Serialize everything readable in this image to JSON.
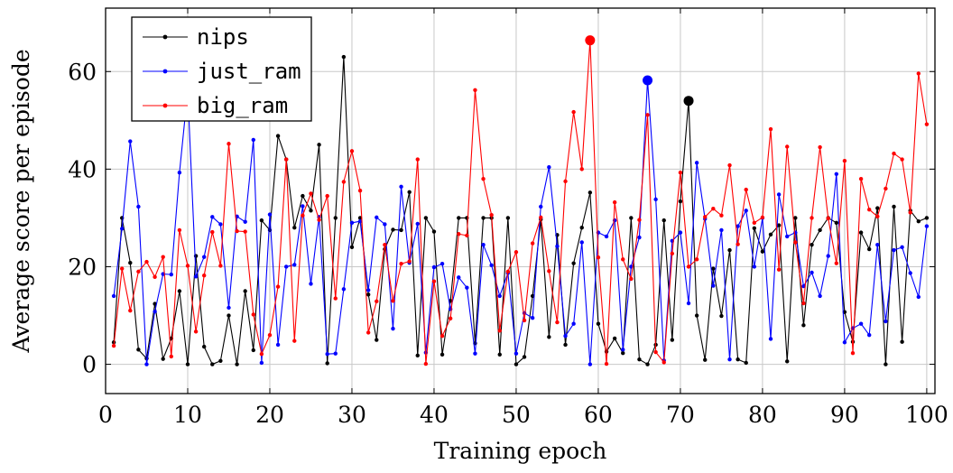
{
  "chart_data": {
    "type": "line",
    "title": "",
    "xlabel": "Training epoch",
    "ylabel": "Average score per episode",
    "xlim": [
      0,
      101
    ],
    "ylim": [
      -6,
      73
    ],
    "xticks": [
      0,
      10,
      20,
      30,
      40,
      50,
      60,
      70,
      80,
      90,
      100
    ],
    "yticks": [
      0,
      20,
      40,
      60
    ],
    "grid": true,
    "legend": "top-left",
    "x": [
      1,
      2,
      3,
      4,
      5,
      6,
      7,
      8,
      9,
      10,
      11,
      12,
      13,
      14,
      15,
      16,
      17,
      18,
      19,
      20,
      21,
      22,
      23,
      24,
      25,
      26,
      27,
      28,
      29,
      30,
      31,
      32,
      33,
      34,
      35,
      36,
      37,
      38,
      39,
      40,
      41,
      42,
      43,
      44,
      45,
      46,
      47,
      48,
      49,
      50,
      51,
      52,
      53,
      54,
      55,
      56,
      57,
      58,
      59,
      60,
      61,
      62,
      63,
      64,
      65,
      66,
      67,
      68,
      69,
      70,
      71,
      72,
      73,
      74,
      75,
      76,
      77,
      78,
      79,
      80,
      81,
      82,
      83,
      84,
      85,
      86,
      87,
      88,
      89,
      90,
      91,
      92,
      93,
      94,
      95,
      96,
      97,
      98,
      99,
      100
    ],
    "series": [
      {
        "name": "nips",
        "color": "#000000",
        "highlight_index": 70,
        "values": [
          4.5,
          30,
          20.8,
          3,
          1.2,
          12.4,
          1.1,
          5.3,
          15,
          0,
          22.2,
          3.6,
          0,
          0.7,
          10,
          0,
          15,
          2.9,
          29.5,
          27.5,
          46.8,
          42,
          28,
          34.5,
          31.5,
          45,
          0.2,
          30,
          63,
          24,
          30,
          14.3,
          5,
          23.6,
          27.6,
          27.5,
          35.3,
          1.8,
          30,
          27.2,
          2,
          13,
          30,
          30,
          4.3,
          30,
          30,
          2,
          30,
          0,
          1.5,
          14,
          29.7,
          5.6,
          26.5,
          4,
          20.7,
          28,
          35.2,
          8.3,
          2.6,
          5.3,
          2.3,
          30,
          1,
          0,
          4,
          29.5,
          5,
          33.4,
          54,
          10,
          0.9,
          19.6,
          9.9,
          23.4,
          1,
          0.3,
          27.9,
          23.1,
          26.6,
          28.5,
          0.6,
          30,
          8,
          24.5,
          27.5,
          30,
          29,
          10.7,
          4.6,
          27,
          23.6,
          32,
          0,
          32.3,
          4.6,
          31.5,
          29.3,
          30
        ]
      },
      {
        "name": "just_ram",
        "color": "#0000ff",
        "highlight_index": 65,
        "values": [
          14,
          27.8,
          45.7,
          32.3,
          0,
          10.8,
          18.5,
          18.4,
          39.3,
          56,
          18,
          22,
          30.2,
          28.7,
          11.6,
          30.3,
          29.2,
          46,
          0.3,
          30.7,
          4,
          20,
          20.4,
          32.4,
          16.5,
          30.2,
          2.1,
          2.2,
          15.4,
          29,
          29.3,
          15.2,
          30.1,
          28.7,
          7.3,
          36.4,
          20.8,
          28.8,
          2.4,
          19.9,
          20.6,
          11.3,
          17.8,
          15.7,
          2.2,
          24.5,
          20.3,
          14,
          18.7,
          2.2,
          10.5,
          9.5,
          32.3,
          40.4,
          24.2,
          5.8,
          8.3,
          25,
          0,
          27,
          26.2,
          29.5,
          3,
          20,
          26,
          58.2,
          33.8,
          0.8,
          25.3,
          27,
          12.5,
          41.3,
          29.8,
          16.1,
          27.5,
          1,
          28.3,
          31.5,
          20,
          30,
          5.2,
          34.8,
          26.2,
          27,
          16,
          18.8,
          14,
          22.2,
          39,
          4.5,
          7.4,
          8.3,
          6,
          24.5,
          8.8,
          23.4,
          24,
          18.7,
          13.8,
          28.3
        ]
      },
      {
        "name": "big_ram",
        "color": "#ff0000",
        "highlight_index": 58,
        "values": [
          3.8,
          19.6,
          11,
          19,
          21,
          17.9,
          22,
          1.6,
          27.5,
          20.2,
          6.7,
          18.2,
          27.1,
          20.2,
          45.2,
          27.3,
          27.2,
          10.2,
          2.1,
          6,
          15.9,
          42,
          4.8,
          30.5,
          35,
          29.6,
          34.5,
          13.5,
          37.4,
          43.7,
          35.6,
          6.5,
          12.9,
          24.5,
          13,
          20.6,
          21.1,
          42,
          0.1,
          17,
          5.8,
          9.4,
          26.7,
          26.4,
          56.2,
          38,
          30.6,
          6.9,
          19,
          23,
          9,
          24.8,
          30.1,
          19.1,
          8.6,
          37.5,
          51.7,
          40,
          66.4,
          21.9,
          0.1,
          33.2,
          21.5,
          17.5,
          29.6,
          51.1,
          2.5,
          0.4,
          22.7,
          39.3,
          20,
          21.5,
          30.2,
          31.9,
          30.5,
          40.8,
          24.6,
          35.8,
          29,
          30.1,
          48.2,
          19.4,
          44.6,
          25,
          12.5,
          30,
          44.5,
          29.9,
          20.7,
          41.7,
          2.3,
          38,
          31.7,
          30.3,
          36,
          43.2,
          42,
          31.1,
          59.6,
          49.2
        ]
      }
    ]
  }
}
